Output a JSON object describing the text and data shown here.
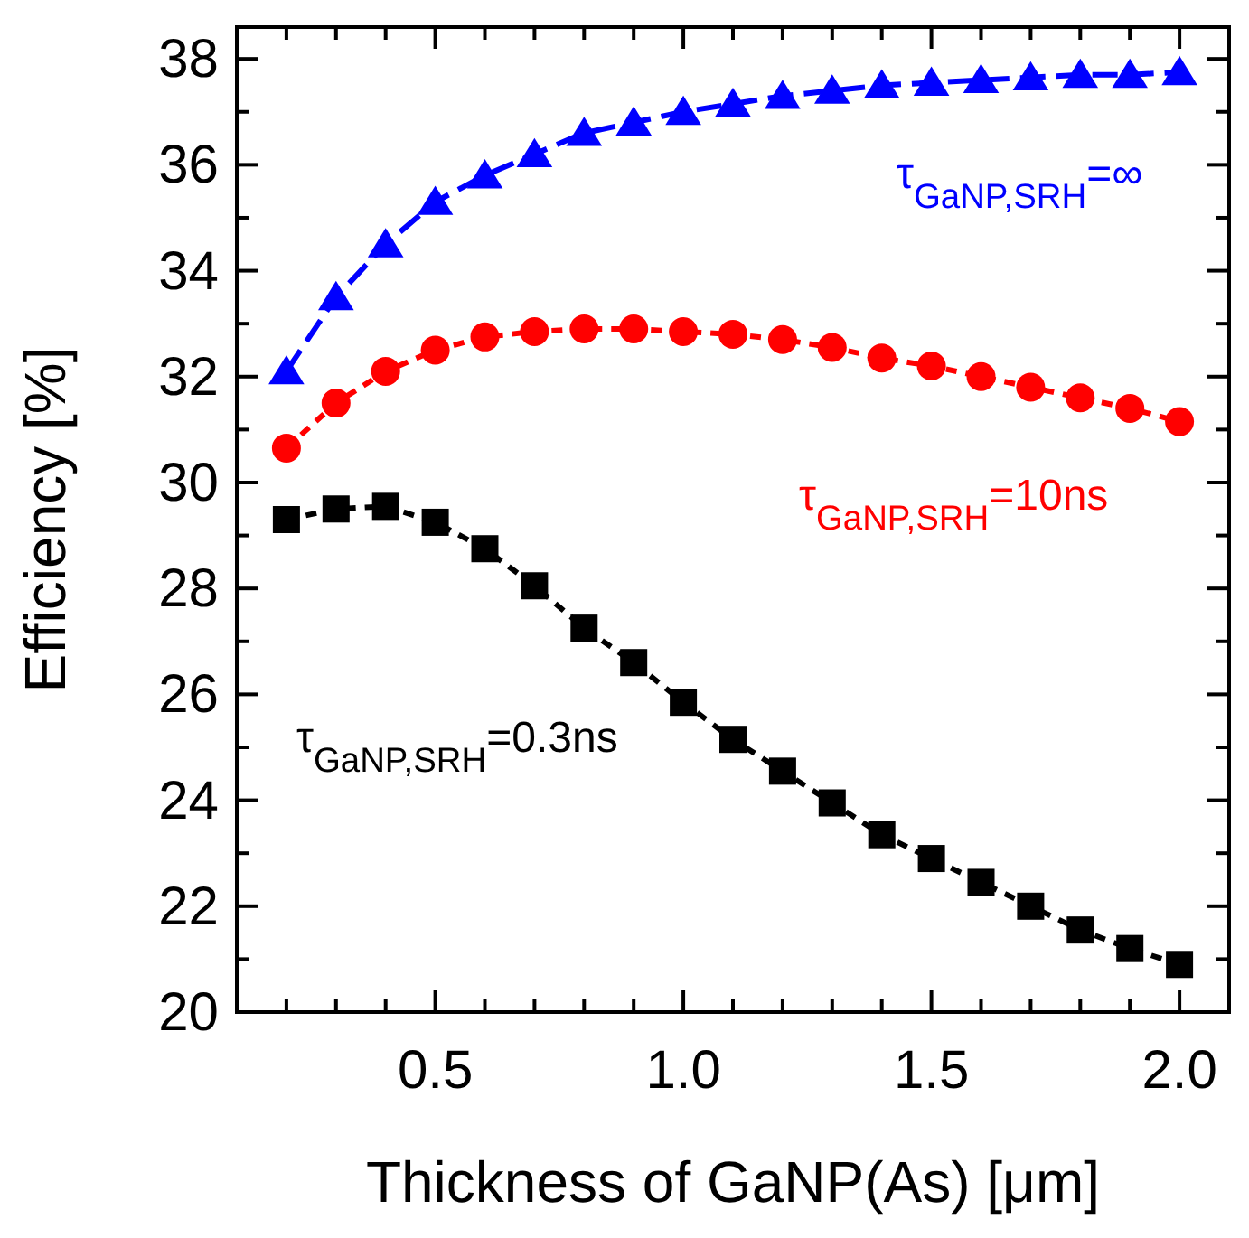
{
  "chart_data": {
    "type": "line",
    "xlabel": "Thickness of GaNP(As) [μm]",
    "ylabel": "Efficiency [%]",
    "x": [
      0.2,
      0.3,
      0.4,
      0.5,
      0.6,
      0.7,
      0.8,
      0.9,
      1.0,
      1.1,
      1.2,
      1.3,
      1.4,
      1.5,
      1.6,
      1.7,
      1.8,
      1.9,
      2.0
    ],
    "series": [
      {
        "color": "#0000ff",
        "marker": "triangle",
        "line_style": "dashed",
        "values": [
          32.1,
          33.5,
          34.5,
          35.3,
          35.8,
          36.2,
          36.6,
          36.8,
          37.0,
          37.15,
          37.3,
          37.4,
          37.5,
          37.55,
          37.6,
          37.65,
          37.7,
          37.7,
          37.75
        ]
      },
      {
        "color": "#ff0000",
        "marker": "circle",
        "line_style": "dotted",
        "values": [
          30.65,
          31.5,
          32.1,
          32.5,
          32.75,
          32.85,
          32.9,
          32.9,
          32.85,
          32.8,
          32.7,
          32.55,
          32.35,
          32.2,
          32.0,
          31.8,
          31.6,
          31.4,
          31.15
        ]
      },
      {
        "color": "#000000",
        "marker": "square",
        "line_style": "dotted",
        "values": [
          29.3,
          29.5,
          29.55,
          29.25,
          28.75,
          28.05,
          27.25,
          26.6,
          25.85,
          25.15,
          24.55,
          23.95,
          23.35,
          22.9,
          22.45,
          22.0,
          21.55,
          21.2,
          20.9
        ]
      }
    ],
    "xlim": [
      0.1,
      2.1
    ],
    "xticks": [
      {
        "value": 0.2,
        "label": null
      },
      {
        "value": 0.3,
        "label": null
      },
      {
        "value": 0.4,
        "label": null
      },
      "0.5",
      {
        "value": 0.6,
        "label": null
      },
      {
        "value": 0.7,
        "label": null
      },
      {
        "value": 0.8,
        "label": null
      },
      {
        "value": 0.9,
        "label": null
      },
      {
        "value": 1.0,
        "label": "1.0"
      },
      {
        "value": 1.1,
        "label": null
      },
      {
        "value": 1.2,
        "label": null
      },
      {
        "value": 1.3,
        "label": null
      },
      {
        "value": 1.4,
        "label": null
      },
      1.5,
      {
        "value": 1.6,
        "label": null
      },
      {
        "value": 1.7,
        "label": null
      },
      {
        "value": 1.8,
        "label": null
      },
      {
        "value": 1.9,
        "label": null
      },
      {
        "value": 2.0,
        "label": "2.0"
      }
    ],
    "ylim": [
      20,
      38.6
    ],
    "yticks": [
      20,
      {
        "value": 21,
        "label": null
      },
      22,
      {
        "value": 23,
        "label": null
      },
      24,
      {
        "value": 25,
        "label": null
      },
      26,
      {
        "value": 27,
        "label": null
      },
      28,
      {
        "value": 29,
        "label": null
      },
      30,
      {
        "value": 31,
        "label": null
      },
      32,
      {
        "value": 33,
        "label": null
      },
      34,
      {
        "value": 35,
        "label": null
      },
      36,
      {
        "value": 37,
        "label": null
      },
      38
    ],
    "annotations": [
      "τ$_{GaNP,SRH}$=∞",
      "τ$_{GaNP,SRH}$=10ns",
      "τ$_{GaNP,SRH}$=0.3ns"
    ],
    "grid": false
  }
}
